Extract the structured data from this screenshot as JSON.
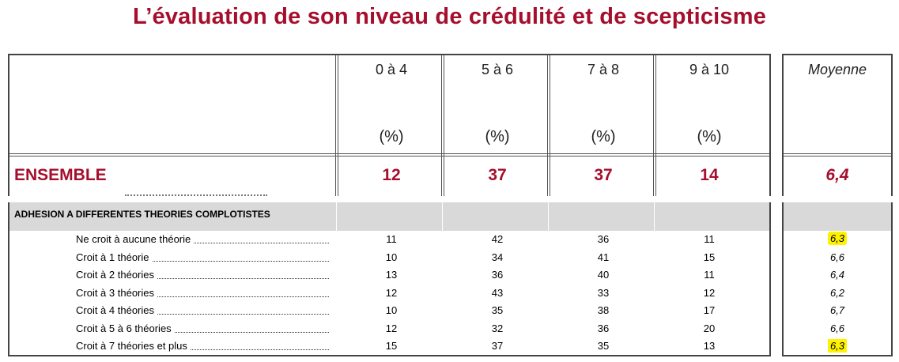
{
  "title": "L’évaluation de son niveau de crédulité et de scepticisme",
  "columns": [
    {
      "label": "0 à 4",
      "unit": "(%)"
    },
    {
      "label": "5 à 6",
      "unit": "(%)"
    },
    {
      "label": "7 à 8",
      "unit": "(%)"
    },
    {
      "label": "9 à 10",
      "unit": "(%)"
    }
  ],
  "mean_header": "Moyenne",
  "ensemble": {
    "label": "ENSEMBLE",
    "values": [
      "12",
      "37",
      "37",
      "14"
    ],
    "mean": "6,4"
  },
  "section": {
    "label": "ADHESION A DIFFERENTES THEORIES COMPLOTISTES"
  },
  "rows": [
    {
      "label": "Ne croit à aucune théorie",
      "values": [
        "11",
        "42",
        "36",
        "11"
      ],
      "mean": "6,3"
    },
    {
      "label": "Croit à 1 théorie",
      "values": [
        "10",
        "34",
        "41",
        "15"
      ],
      "mean": "6,6"
    },
    {
      "label": "Croit à 2 théories",
      "values": [
        "13",
        "36",
        "40",
        "11"
      ],
      "mean": "6,4"
    },
    {
      "label": "Croit à 3 théories",
      "values": [
        "12",
        "43",
        "33",
        "12"
      ],
      "mean": "6,2"
    },
    {
      "label": "Croit à 4 théories",
      "values": [
        "10",
        "35",
        "38",
        "17"
      ],
      "mean": "6,7"
    },
    {
      "label": "Croit à 5 à 6 théories",
      "values": [
        "12",
        "32",
        "36",
        "20"
      ],
      "mean": "6,6"
    },
    {
      "label": "Croit à 7 théories et plus",
      "values": [
        "15",
        "37",
        "35",
        "13"
      ],
      "mean": "6,3"
    }
  ],
  "highlight_color": "#fff200",
  "accent_color": "#a50f2d"
}
